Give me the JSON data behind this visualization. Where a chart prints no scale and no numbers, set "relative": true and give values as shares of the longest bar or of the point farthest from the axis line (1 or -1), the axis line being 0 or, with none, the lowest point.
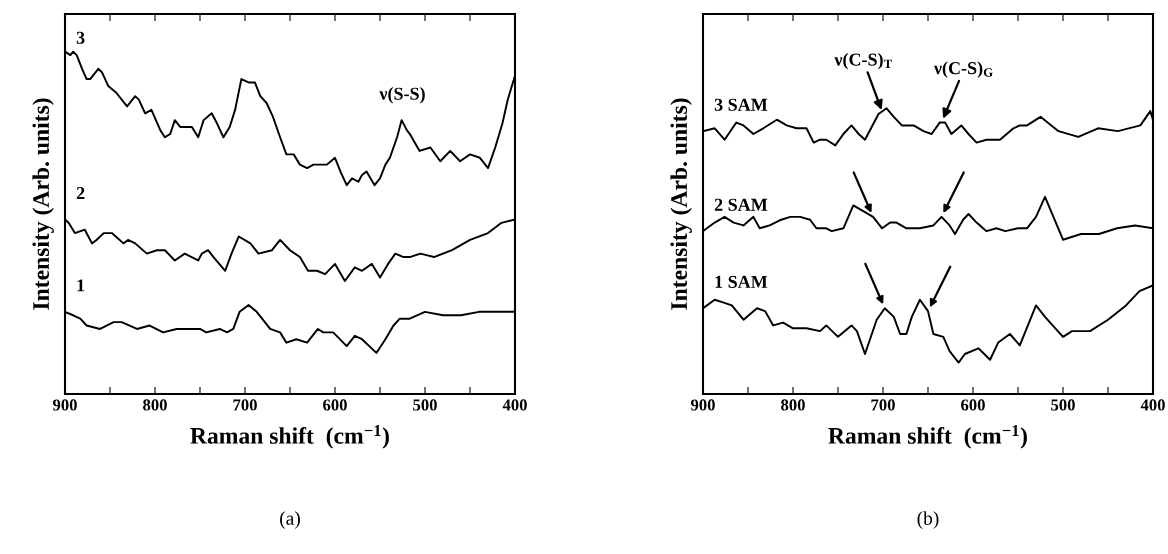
{
  "chart_data": [
    {
      "type": "line",
      "relative": true,
      "xlabel": "Raman shift  (cm$^{−1}$)",
      "ylabel": "Intensity (Arb. units)",
      "xlim": [
        900,
        400
      ],
      "xticks": [
        900,
        {
          "value": 850,
          "label": null
        },
        800,
        {
          "value": 750,
          "label": null
        },
        700,
        {
          "value": 650,
          "label": null
        },
        600,
        {
          "value": 550,
          "label": null
        },
        500,
        {
          "value": 450,
          "label": null
        },
        400
      ],
      "tick_labels": "x",
      "grid": false,
      "legend": false,
      "marker": "none",
      "line_style": "solid",
      "annotations": [
        {
          "text": "ν(S-S)",
          "x": 525,
          "y": 0.8
        },
        "(a)"
      ],
      "series": [
        {
          "name": "3",
          "color": "#000000",
          "x": [
            900,
            894,
            891,
            887,
            881,
            876,
            872,
            863,
            859,
            852,
            843,
            837,
            831,
            822,
            818,
            811,
            804,
            794,
            789,
            783,
            778,
            772,
            759,
            752,
            746,
            737,
            731,
            724,
            717,
            711,
            704,
            696,
            689,
            683,
            676,
            669,
            661,
            654,
            646,
            639,
            631,
            624,
            609,
            600,
            594,
            587,
            581,
            574,
            570,
            565,
            556,
            550,
            544,
            539,
            531,
            526,
            520,
            517,
            506,
            494,
            483,
            472,
            461,
            450,
            439,
            430,
            422,
            414,
            408,
            400
          ],
          "values": [
            1.0,
            0.99,
            1.0,
            0.99,
            0.95,
            0.92,
            0.92,
            0.95,
            0.94,
            0.9,
            0.88,
            0.86,
            0.84,
            0.87,
            0.86,
            0.82,
            0.83,
            0.77,
            0.75,
            0.76,
            0.8,
            0.78,
            0.78,
            0.75,
            0.8,
            0.82,
            0.79,
            0.75,
            0.78,
            0.83,
            0.92,
            0.91,
            0.91,
            0.87,
            0.85,
            0.81,
            0.75,
            0.7,
            0.7,
            0.67,
            0.66,
            0.67,
            0.67,
            0.69,
            0.65,
            0.61,
            0.63,
            0.62,
            0.64,
            0.65,
            0.61,
            0.63,
            0.67,
            0.69,
            0.75,
            0.8,
            0.77,
            0.76,
            0.71,
            0.72,
            0.68,
            0.71,
            0.68,
            0.7,
            0.69,
            0.66,
            0.72,
            0.79,
            0.86,
            0.93
          ]
        },
        {
          "name": "2",
          "color": "#000000",
          "x": [
            900,
            896,
            889,
            878,
            870,
            865,
            857,
            848,
            835,
            830,
            822,
            809,
            798,
            789,
            778,
            767,
            752,
            748,
            741,
            735,
            722,
            715,
            707,
            694,
            685,
            670,
            661,
            650,
            639,
            630,
            620,
            611,
            600,
            589,
            578,
            570,
            559,
            550,
            541,
            533,
            524,
            517,
            505,
            490,
            470,
            450,
            430,
            415,
            400
          ],
          "values": [
            0.51,
            0.5,
            0.47,
            0.48,
            0.44,
            0.45,
            0.47,
            0.47,
            0.44,
            0.45,
            0.44,
            0.41,
            0.42,
            0.42,
            0.39,
            0.41,
            0.39,
            0.41,
            0.42,
            0.4,
            0.36,
            0.41,
            0.46,
            0.44,
            0.41,
            0.42,
            0.45,
            0.42,
            0.4,
            0.36,
            0.36,
            0.35,
            0.38,
            0.33,
            0.37,
            0.36,
            0.38,
            0.34,
            0.38,
            0.41,
            0.4,
            0.4,
            0.41,
            0.4,
            0.42,
            0.45,
            0.47,
            0.5,
            0.51
          ]
        },
        {
          "name": "1",
          "color": "#000000",
          "x": [
            900,
            891,
            883,
            876,
            861,
            846,
            837,
            820,
            806,
            791,
            776,
            757,
            750,
            743,
            728,
            720,
            713,
            706,
            696,
            687,
            672,
            661,
            654,
            643,
            631,
            619,
            613,
            602,
            587,
            578,
            570,
            554,
            544,
            535,
            528,
            517,
            500,
            480,
            460,
            440,
            420,
            400
          ],
          "values": [
            0.24,
            0.23,
            0.22,
            0.2,
            0.19,
            0.21,
            0.21,
            0.19,
            0.2,
            0.18,
            0.19,
            0.19,
            0.19,
            0.18,
            0.19,
            0.18,
            0.19,
            0.24,
            0.26,
            0.24,
            0.19,
            0.18,
            0.15,
            0.16,
            0.15,
            0.19,
            0.18,
            0.18,
            0.14,
            0.17,
            0.16,
            0.12,
            0.16,
            0.2,
            0.22,
            0.22,
            0.24,
            0.23,
            0.23,
            0.24,
            0.24,
            0.24
          ]
        }
      ]
    },
    {
      "type": "line",
      "relative": true,
      "xlabel": "Raman shift  (cm$^{−1}$)",
      "ylabel": "Intensity (Arb. units)",
      "xlim": [
        900,
        400
      ],
      "xticks": [
        900,
        {
          "value": 850,
          "label": null
        },
        800,
        {
          "value": 750,
          "label": null
        },
        700,
        {
          "value": 650,
          "label": null
        },
        600,
        {
          "value": 550,
          "label": null
        },
        500,
        {
          "value": 450,
          "label": null
        },
        400
      ],
      "tick_labels": "x",
      "grid": false,
      "legend": false,
      "marker": "none",
      "line_style": "solid",
      "annotations": [
        {
          "text": "ν(C-S)$_{T}$",
          "x": 700,
          "y": 0.98
        },
        {
          "text": "ν(C-S)$_{G}$",
          "x": 635,
          "y": 0.95
        },
        "(b)"
      ],
      "series": [
        {
          "name": "3 SAM",
          "color": "#000000",
          "x": [
            900,
            887,
            876,
            863,
            855,
            844,
            833,
            818,
            807,
            796,
            785,
            777,
            770,
            763,
            753,
            744,
            735,
            727,
            720,
            705,
            696,
            688,
            679,
            666,
            655,
            646,
            637,
            631,
            624,
            613,
            605,
            596,
            585,
            570,
            555,
            548,
            540,
            525,
            505,
            483,
            461,
            439,
            414,
            403,
            400
          ],
          "values": [
            0.92,
            0.93,
            0.89,
            0.95,
            0.94,
            0.91,
            0.93,
            0.96,
            0.94,
            0.93,
            0.93,
            0.88,
            0.89,
            0.89,
            0.87,
            0.91,
            0.94,
            0.91,
            0.89,
            0.98,
            1.0,
            0.97,
            0.94,
            0.94,
            0.92,
            0.91,
            0.95,
            0.95,
            0.91,
            0.94,
            0.91,
            0.88,
            0.89,
            0.89,
            0.93,
            0.94,
            0.94,
            0.97,
            0.92,
            0.9,
            0.93,
            0.92,
            0.94,
            0.99,
            0.96
          ]
        },
        {
          "name": "2 SAM",
          "color": "#000000",
          "x": [
            900,
            887,
            876,
            866,
            855,
            844,
            837,
            826,
            813,
            803,
            792,
            781,
            774,
            763,
            757,
            744,
            733,
            722,
            711,
            701,
            692,
            685,
            674,
            659,
            644,
            635,
            626,
            620,
            611,
            605,
            596,
            585,
            574,
            564,
            550,
            540,
            530,
            520,
            500,
            480,
            460,
            440,
            420,
            400
          ],
          "values": [
            0.57,
            0.6,
            0.62,
            0.6,
            0.59,
            0.62,
            0.58,
            0.59,
            0.61,
            0.62,
            0.62,
            0.61,
            0.58,
            0.58,
            0.57,
            0.58,
            0.66,
            0.64,
            0.62,
            0.58,
            0.6,
            0.6,
            0.58,
            0.58,
            0.59,
            0.62,
            0.59,
            0.56,
            0.61,
            0.63,
            0.6,
            0.57,
            0.58,
            0.57,
            0.58,
            0.58,
            0.62,
            0.69,
            0.54,
            0.56,
            0.56,
            0.58,
            0.59,
            0.58
          ]
        },
        {
          "name": "1 SAM",
          "color": "#000000",
          "x": [
            900,
            887,
            877,
            868,
            855,
            840,
            831,
            822,
            811,
            800,
            785,
            770,
            763,
            750,
            735,
            729,
            720,
            707,
            698,
            688,
            681,
            674,
            668,
            659,
            650,
            644,
            633,
            626,
            616,
            609,
            594,
            581,
            572,
            559,
            548,
            530,
            520,
            500,
            490,
            470,
            450,
            430,
            415,
            400
          ],
          "values": [
            0.3,
            0.33,
            0.32,
            0.31,
            0.26,
            0.3,
            0.29,
            0.24,
            0.25,
            0.23,
            0.23,
            0.22,
            0.24,
            0.2,
            0.24,
            0.22,
            0.14,
            0.26,
            0.3,
            0.27,
            0.21,
            0.21,
            0.27,
            0.33,
            0.29,
            0.21,
            0.2,
            0.15,
            0.11,
            0.14,
            0.16,
            0.12,
            0.18,
            0.21,
            0.17,
            0.31,
            0.27,
            0.2,
            0.22,
            0.22,
            0.26,
            0.31,
            0.36,
            0.38
          ]
        }
      ]
    }
  ]
}
